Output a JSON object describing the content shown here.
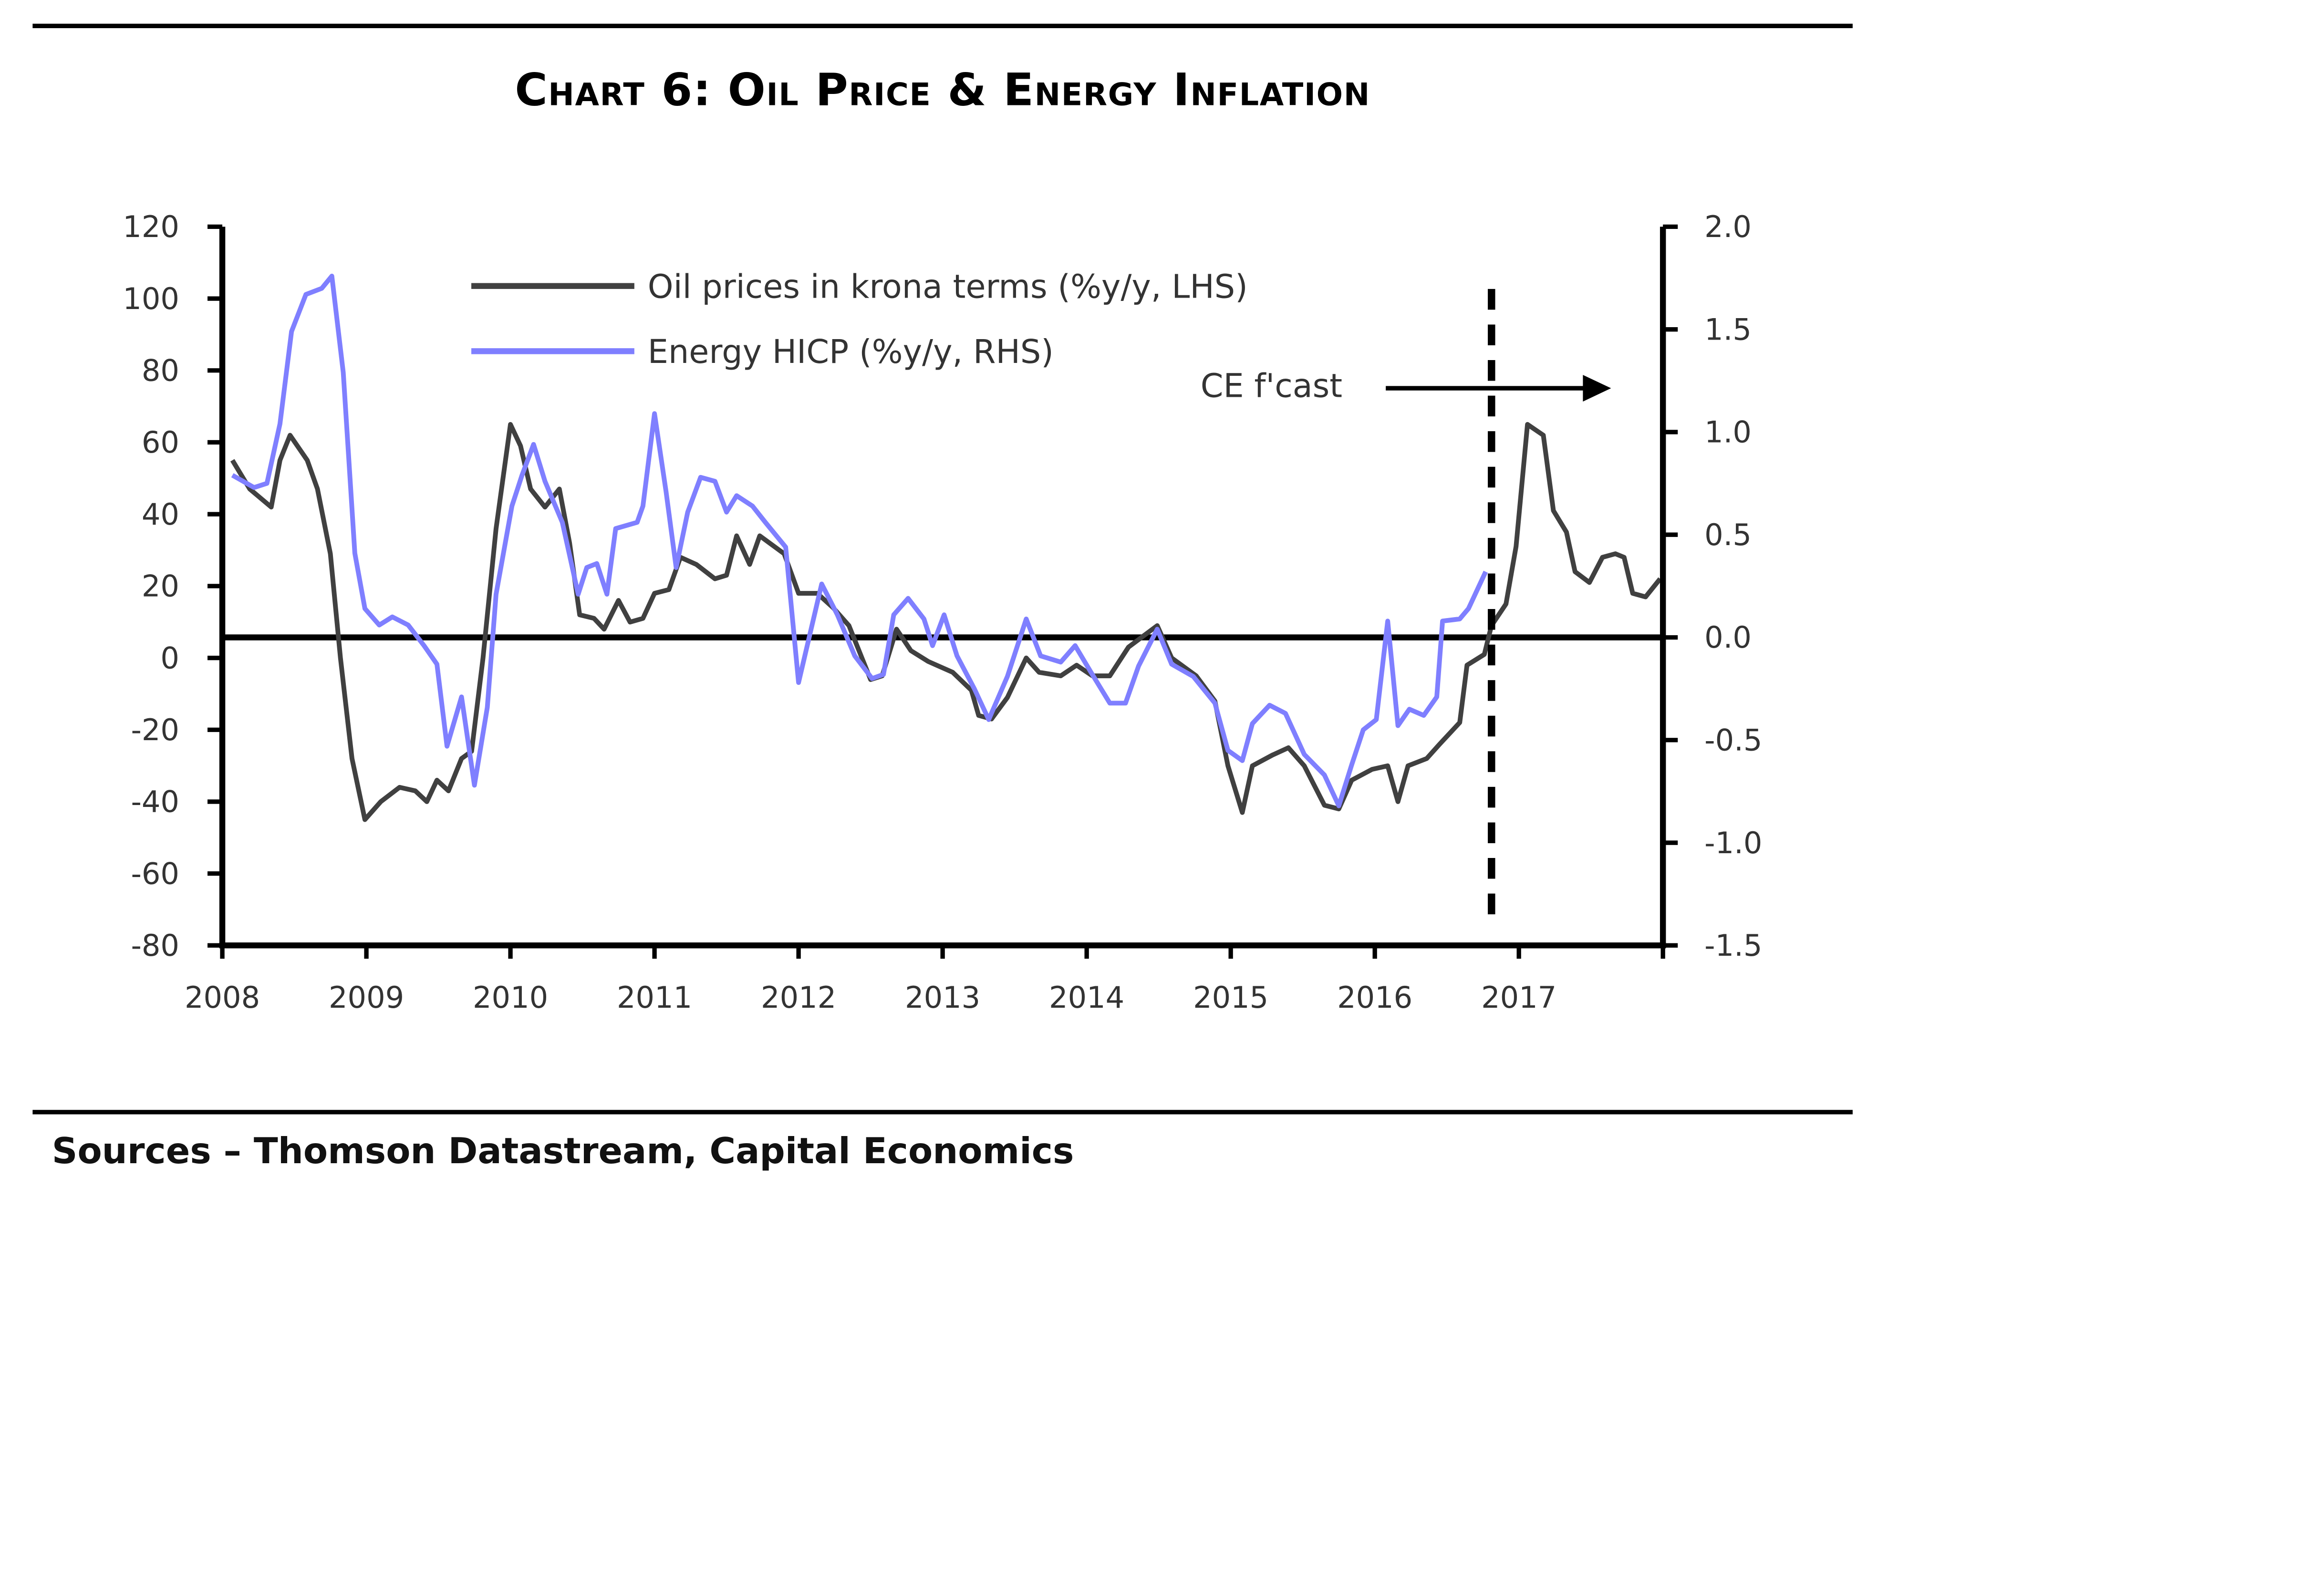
{
  "title": "Chart 6: Oil Price & Energy Inflation",
  "sources": "Sources – Thomson Datastream, Capital Economics",
  "colors": {
    "oil": "#404040",
    "energy": "#7f7fff",
    "axis": "#000000",
    "text": "#333333"
  },
  "chart_data": {
    "type": "line",
    "title": "Chart 6: Oil Price & Energy Inflation",
    "xlabel": "",
    "ylabel_left": "",
    "ylabel_right": "",
    "xlim": [
      2008,
      2018
    ],
    "ylim_left": [
      -80,
      120
    ],
    "ylim_right": [
      -1.5,
      2.0
    ],
    "x_ticks": [
      2008,
      2009,
      2010,
      2011,
      2012,
      2013,
      2014,
      2015,
      2016,
      2017,
      2018
    ],
    "x_tick_labels": [
      "2008",
      "2009",
      "2010",
      "2011",
      "2012",
      "2013",
      "2014",
      "2015",
      "2016",
      "2017"
    ],
    "y_ticks_left": [
      120,
      100,
      80,
      60,
      40,
      20,
      0,
      -20,
      -40,
      -60,
      -80
    ],
    "y_tick_labels_left": [
      "120",
      "100",
      "80",
      "60",
      "40",
      "20",
      "0",
      "-20",
      "-40",
      "-60",
      "-80"
    ],
    "y_ticks_right": [
      2.0,
      1.5,
      1.0,
      0.5,
      0.0,
      -0.5,
      -1.0,
      -1.5
    ],
    "y_tick_labels_right": [
      "2.0",
      "1.5",
      "1.0",
      "0.5",
      "0.0",
      "-0.5",
      "-1.0",
      "-1.5"
    ],
    "grid": false,
    "legend_position": "top-center",
    "reference_line": {
      "axis": "right",
      "value": 0.0
    },
    "forecast": {
      "label": "CE f'cast",
      "start": 2016.81
    },
    "series": [
      {
        "name": "Oil prices in krona terms (%y/y, LHS)",
        "axis": "left",
        "color": "#404040",
        "x": [
          2008.07,
          2008.19,
          2008.34,
          2008.4,
          2008.47,
          2008.59,
          2008.66,
          2008.75,
          2008.82,
          2008.9,
          2008.99,
          2009.1,
          2009.23,
          2009.34,
          2009.42,
          2009.49,
          2009.57,
          2009.66,
          2009.73,
          2009.81,
          2009.9,
          2010.0,
          2010.07,
          2010.14,
          2010.24,
          2010.34,
          2010.41,
          2010.48,
          2010.58,
          2010.65,
          2010.75,
          2010.83,
          2010.92,
          2011.0,
          2011.1,
          2011.18,
          2011.29,
          2011.42,
          2011.5,
          2011.57,
          2011.66,
          2011.73,
          2011.9,
          2012.0,
          2012.13,
          2012.24,
          2012.35,
          2012.5,
          2012.58,
          2012.68,
          2012.78,
          2012.9,
          2013.07,
          2013.2,
          2013.25,
          2013.34,
          2013.45,
          2013.58,
          2013.67,
          2013.82,
          2013.93,
          2014.04,
          2014.16,
          2014.29,
          2014.49,
          2014.59,
          2014.76,
          2014.89,
          2014.98,
          2015.08,
          2015.15,
          2015.29,
          2015.4,
          2015.51,
          2015.65,
          2015.75,
          2015.84,
          2015.98,
          2016.09,
          2016.16,
          2016.23,
          2016.36,
          2016.45,
          2016.59,
          2016.64,
          2016.76,
          2016.81,
          2016.91,
          2016.98,
          2017.06,
          2017.17,
          2017.24,
          2017.33,
          2017.39,
          2017.49,
          2017.58,
          2017.67,
          2017.73,
          2017.79,
          2017.88,
          2017.98
        ],
        "values": [
          55,
          47,
          42,
          55,
          62,
          55,
          47,
          29,
          0,
          -28,
          -45,
          -40,
          -36,
          -37,
          -40,
          -34,
          -37,
          -28,
          -26,
          0,
          36,
          65,
          59,
          47,
          42,
          47,
          32,
          12,
          11,
          8,
          16,
          10,
          11,
          18,
          19,
          28,
          26,
          22,
          23,
          34,
          26,
          34,
          29,
          18,
          18,
          14,
          9,
          -6,
          -5,
          8,
          2,
          -1,
          -4,
          -9,
          -16,
          -17,
          -11,
          0,
          -4,
          -5,
          -2,
          -5,
          -5,
          3,
          9,
          0,
          -5,
          -12,
          -30,
          -43,
          -30,
          -27,
          -25,
          -30,
          -41,
          -42,
          -34,
          -31,
          -30,
          -40,
          -30,
          -28,
          -24,
          -18,
          -2,
          1,
          9,
          15,
          31,
          65,
          62,
          41,
          35,
          24,
          21,
          28,
          29,
          28,
          18,
          17,
          22
        ]
      },
      {
        "name": "Energy HICP (%y/y, RHS)",
        "axis": "right",
        "color": "#7f7fff",
        "x": [
          2008.07,
          2008.22,
          2008.31,
          2008.4,
          2008.48,
          2008.58,
          2008.69,
          2008.76,
          2008.84,
          2008.92,
          2008.99,
          2009.09,
          2009.18,
          2009.29,
          2009.4,
          2009.49,
          2009.56,
          2009.66,
          2009.75,
          2009.84,
          2009.9,
          2010.01,
          2010.08,
          2010.16,
          2010.24,
          2010.36,
          2010.47,
          2010.53,
          2010.6,
          2010.67,
          2010.73,
          2010.88,
          2010.92,
          2011.0,
          2011.08,
          2011.15,
          2011.23,
          2011.32,
          2011.42,
          2011.5,
          2011.57,
          2011.68,
          2011.77,
          2011.91,
          2012.0,
          2012.16,
          2012.27,
          2012.39,
          2012.51,
          2012.59,
          2012.66,
          2012.76,
          2012.87,
          2012.93,
          2013.01,
          2013.1,
          2013.22,
          2013.32,
          2013.45,
          2013.58,
          2013.68,
          2013.82,
          2013.92,
          2014.03,
          2014.16,
          2014.27,
          2014.36,
          2014.49,
          2014.59,
          2014.74,
          2014.89,
          2014.98,
          2015.08,
          2015.15,
          2015.27,
          2015.38,
          2015.51,
          2015.65,
          2015.75,
          2015.84,
          2015.92,
          2016.01,
          2016.09,
          2016.16,
          2016.24,
          2016.34,
          2016.43,
          2016.47,
          2016.59,
          2016.65,
          2016.77
        ],
        "values": [
          0.79,
          0.73,
          0.75,
          1.04,
          1.49,
          1.67,
          1.7,
          1.76,
          1.29,
          0.41,
          0.14,
          0.06,
          0.1,
          0.06,
          -0.04,
          -0.13,
          -0.53,
          -0.29,
          -0.72,
          -0.34,
          0.21,
          0.64,
          0.79,
          0.94,
          0.76,
          0.56,
          0.21,
          0.34,
          0.36,
          0.21,
          0.53,
          0.56,
          0.64,
          1.09,
          0.71,
          0.34,
          0.61,
          0.78,
          0.76,
          0.61,
          0.69,
          0.64,
          0.56,
          0.44,
          -0.22,
          0.26,
          0.11,
          -0.09,
          -0.2,
          -0.18,
          0.11,
          0.19,
          0.09,
          -0.04,
          0.11,
          -0.09,
          -0.25,
          -0.4,
          -0.19,
          0.09,
          -0.09,
          -0.12,
          -0.04,
          -0.17,
          -0.32,
          -0.32,
          -0.14,
          0.04,
          -0.13,
          -0.19,
          -0.32,
          -0.55,
          -0.6,
          -0.42,
          -0.33,
          -0.37,
          -0.57,
          -0.67,
          -0.82,
          -0.62,
          -0.45,
          -0.4,
          0.08,
          -0.43,
          -0.35,
          -0.38,
          -0.29,
          0.08,
          0.09,
          0.14,
          0.32
        ]
      }
    ]
  }
}
